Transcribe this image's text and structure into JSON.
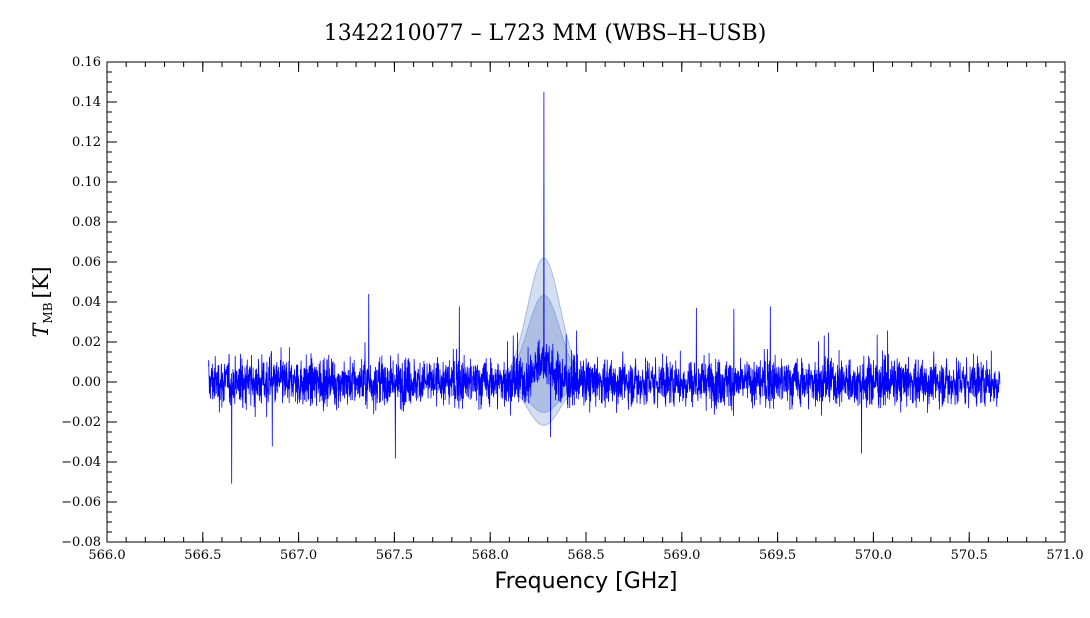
{
  "chart_data": {
    "type": "line",
    "title": "1342210077 – L723 MM (WBS–H–USB)",
    "xlabel": "Frequency [GHz]",
    "ylabel_main": "T",
    "ylabel_sub": "MB",
    "ylabel_unit": "[K]",
    "xlim": [
      566.0,
      571.0
    ],
    "ylim": [
      -0.08,
      0.16
    ],
    "x_ticks": [
      566.0,
      566.5,
      567.0,
      567.5,
      568.0,
      568.5,
      569.0,
      569.5,
      570.0,
      570.5,
      571.0
    ],
    "x_tick_labels": [
      "566.0",
      "566.5",
      "567.0",
      "567.5",
      "568.0",
      "568.5",
      "569.0",
      "569.5",
      "570.0",
      "570.5",
      "571.0"
    ],
    "y_ticks": [
      -0.08,
      -0.06,
      -0.04,
      -0.02,
      0.0,
      0.02,
      0.04,
      0.06,
      0.08,
      0.1,
      0.12,
      0.14,
      0.16
    ],
    "y_tick_labels": [
      "−0.08",
      "−0.06",
      "−0.04",
      "−0.02",
      "0.00",
      "0.02",
      "0.04",
      "0.06",
      "0.08",
      "0.10",
      "0.12",
      "0.14",
      "0.16"
    ],
    "grid": false,
    "series": [
      {
        "color": "#0000ff",
        "x_range": [
          566.53,
          570.66
        ],
        "noise_rms": 0.012,
        "line_peak": {
          "x": 568.28,
          "y": 0.145
        }
      }
    ],
    "fit_overlay": {
      "color": "#6688cc",
      "center": 568.28,
      "peak": 0.062,
      "width": 0.085
    }
  }
}
